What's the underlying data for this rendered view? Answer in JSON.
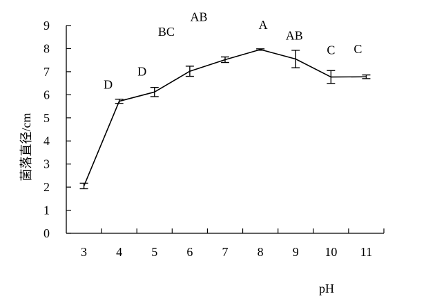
{
  "chart_data": {
    "type": "line",
    "xlabel": "pH",
    "ylabel": "菌落直径/cm",
    "ylim": [
      0,
      9
    ],
    "yticks": [
      "0",
      "1",
      "2",
      "3",
      "4",
      "5",
      "6",
      "7",
      "8",
      "9"
    ],
    "categories": [
      "3",
      "4",
      "5",
      "6",
      "7",
      "8",
      "9",
      "10",
      "11"
    ],
    "series": [
      {
        "values": [
          2.05,
          5.72,
          6.12,
          7.02,
          7.52,
          7.96,
          7.55,
          6.77,
          6.78
        ],
        "error": [
          0.12,
          0.09,
          0.2,
          0.22,
          0.12,
          0.03,
          0.38,
          0.28,
          0.08
        ],
        "significance_letters": [
          "",
          "D",
          "D",
          "BC",
          "AB",
          "A",
          "AB",
          "C",
          "C"
        ]
      }
    ],
    "grid": false,
    "legend": "none",
    "line_color": "#000000"
  }
}
